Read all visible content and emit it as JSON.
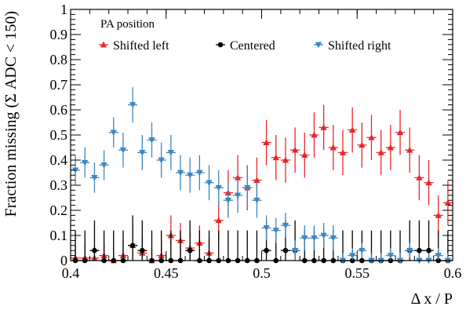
{
  "chart_data": {
    "type": "scatter",
    "xlabel": "Δ x / P",
    "ylabel": "Fraction missing (Σ ADC < 150)",
    "xlim": [
      0.4,
      0.6
    ],
    "ylim": [
      0,
      1
    ],
    "x_ticks": [
      "0.4",
      "0.45",
      "0.5",
      "0.55",
      "0.6"
    ],
    "y_ticks": [
      "0",
      "0.1",
      "0.2",
      "0.3",
      "0.4",
      "0.5",
      "0.6",
      "0.7",
      "0.8",
      "0.9",
      "1"
    ],
    "grid": false,
    "legend": {
      "title": "PA position",
      "placement": "top-center"
    },
    "series": [
      {
        "name": "Shifted left",
        "color": "#e8262b",
        "marker": "triangle-up",
        "x": [
          0.4025,
          0.4075,
          0.4125,
          0.4175,
          0.4225,
          0.4275,
          0.4325,
          0.4375,
          0.4425,
          0.4475,
          0.4525,
          0.4575,
          0.4625,
          0.4675,
          0.4725,
          0.4775,
          0.4825,
          0.4875,
          0.4925,
          0.4975,
          0.5025,
          0.5075,
          0.5125,
          0.5175,
          0.5225,
          0.5275,
          0.5325,
          0.5375,
          0.5425,
          0.5475,
          0.5525,
          0.5575,
          0.5625,
          0.5675,
          0.5725,
          0.5775,
          0.5825,
          0.5875,
          0.5925,
          0.5975
        ],
        "y": [
          0.01,
          0.01,
          0.01,
          0.02,
          0.0,
          0.02,
          0.06,
          0.03,
          0.0,
          0.02,
          0.1,
          0.08,
          0.05,
          0.07,
          0.03,
          0.16,
          0.27,
          0.33,
          0.29,
          0.32,
          0.47,
          0.41,
          0.4,
          0.44,
          0.42,
          0.5,
          0.53,
          0.45,
          0.43,
          0.52,
          0.46,
          0.49,
          0.43,
          0.45,
          0.51,
          0.44,
          0.33,
          0.31,
          0.18,
          0.23
        ],
        "err": [
          0.05,
          0.05,
          0.05,
          0.05,
          0.05,
          0.06,
          0.08,
          0.06,
          0.05,
          0.06,
          0.08,
          0.07,
          0.07,
          0.07,
          0.06,
          0.08,
          0.09,
          0.09,
          0.09,
          0.09,
          0.09,
          0.09,
          0.09,
          0.09,
          0.09,
          0.09,
          0.09,
          0.09,
          0.09,
          0.09,
          0.09,
          0.09,
          0.09,
          0.09,
          0.09,
          0.09,
          0.09,
          0.09,
          0.08,
          0.09
        ]
      },
      {
        "name": "Centered",
        "color": "#000000",
        "marker": "circle",
        "x": [
          0.4025,
          0.4075,
          0.4125,
          0.4175,
          0.4225,
          0.4275,
          0.4325,
          0.4375,
          0.4425,
          0.4475,
          0.4525,
          0.4575,
          0.4625,
          0.4675,
          0.4725,
          0.4775,
          0.4825,
          0.4875,
          0.4925,
          0.4975,
          0.5025,
          0.5075,
          0.5125,
          0.5175,
          0.5225,
          0.5275,
          0.5325,
          0.5375,
          0.5425,
          0.5475,
          0.5525,
          0.5575,
          0.5625,
          0.5675,
          0.5725,
          0.5775,
          0.5825,
          0.5875,
          0.5925,
          0.5975
        ],
        "y": [
          0.0,
          0.0,
          0.04,
          0.0,
          0.0,
          0.0,
          0.06,
          0.04,
          0.0,
          0.0,
          0.0,
          0.0,
          0.04,
          0.0,
          0.0,
          0.0,
          0.0,
          0.0,
          0.0,
          0.0,
          0.04,
          0.0,
          0.04,
          0.04,
          0.0,
          0.0,
          0.0,
          0.0,
          0.0,
          0.0,
          0.0,
          0.0,
          0.0,
          0.0,
          0.0,
          0.04,
          0.04,
          0.04,
          0.0,
          0.0
        ],
        "err": [
          0.12,
          0.12,
          0.12,
          0.12,
          0.12,
          0.12,
          0.12,
          0.12,
          0.12,
          0.12,
          0.12,
          0.12,
          0.12,
          0.12,
          0.12,
          0.12,
          0.12,
          0.12,
          0.12,
          0.12,
          0.12,
          0.12,
          0.12,
          0.12,
          0.12,
          0.12,
          0.12,
          0.12,
          0.12,
          0.12,
          0.12,
          0.12,
          0.12,
          0.12,
          0.12,
          0.12,
          0.12,
          0.12,
          0.12,
          0.12
        ]
      },
      {
        "name": "Shifted right",
        "color": "#3d87c2",
        "marker": "triangle-down",
        "x": [
          0.4025,
          0.4075,
          0.4125,
          0.4175,
          0.4225,
          0.4275,
          0.4325,
          0.4375,
          0.4425,
          0.4475,
          0.4525,
          0.4575,
          0.4625,
          0.4675,
          0.4725,
          0.4775,
          0.4825,
          0.4875,
          0.4925,
          0.4975,
          0.5025,
          0.5075,
          0.5125,
          0.5175,
          0.5225,
          0.5275,
          0.5325,
          0.5375,
          0.5425,
          0.5475,
          0.5525,
          0.5575,
          0.5625,
          0.5675,
          0.5725,
          0.5775,
          0.5825,
          0.5875,
          0.5925,
          0.5975
        ],
        "y": [
          0.36,
          0.39,
          0.33,
          0.38,
          0.51,
          0.44,
          0.62,
          0.43,
          0.48,
          0.4,
          0.43,
          0.35,
          0.34,
          0.35,
          0.31,
          0.29,
          0.24,
          0.26,
          0.29,
          0.24,
          0.13,
          0.12,
          0.14,
          0.04,
          0.09,
          0.09,
          0.1,
          0.09,
          0.0,
          0.02,
          0.04,
          0.0,
          0.0,
          0.02,
          0.0,
          0.04,
          0.0,
          0.0,
          0.02,
          0.0
        ],
        "err": [
          0.06,
          0.06,
          0.06,
          0.06,
          0.06,
          0.07,
          0.07,
          0.07,
          0.07,
          0.07,
          0.07,
          0.07,
          0.07,
          0.07,
          0.07,
          0.07,
          0.07,
          0.07,
          0.07,
          0.07,
          0.05,
          0.05,
          0.05,
          0.04,
          0.05,
          0.05,
          0.05,
          0.05,
          0.03,
          0.03,
          0.03,
          0.03,
          0.03,
          0.03,
          0.03,
          0.03,
          0.03,
          0.03,
          0.03,
          0.03
        ]
      }
    ]
  }
}
